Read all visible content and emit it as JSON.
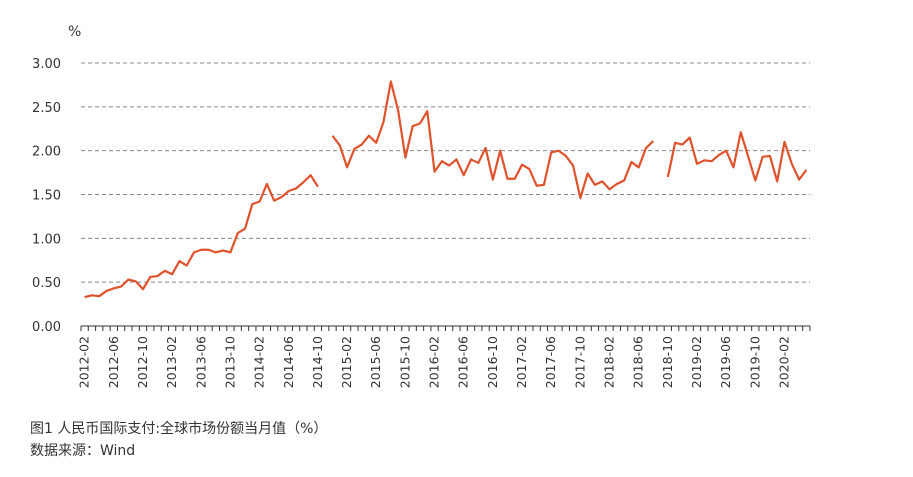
{
  "chart_data": {
    "type": "line",
    "title": "",
    "ylabel": "%",
    "xlabel": "",
    "ylim": [
      0,
      3
    ],
    "yticks": [
      "0.00",
      "0.50",
      "1.00",
      "1.50",
      "2.00",
      "2.50",
      "3.00"
    ],
    "grid": "horizontal-dashed",
    "line_color": "#E0522B",
    "axis_color": "#333333",
    "grid_color": "#888888",
    "xtick_labels": [
      "2012-02",
      "2012-06",
      "2012-10",
      "2013-02",
      "2013-06",
      "2013-10",
      "2014-02",
      "2014-06",
      "2014-10",
      "2015-02",
      "2015-06",
      "2015-10",
      "2016-02",
      "2016-06",
      "2016-10",
      "2017-02",
      "2017-06",
      "2017-10",
      "2018-02",
      "2018-06",
      "2018-10",
      "2019-02",
      "2019-06",
      "2019-10",
      "2020-02"
    ],
    "start_month": "2012-02",
    "series": [
      {
        "values": [
          0.33,
          0.35,
          0.34,
          0.4,
          0.43,
          0.45,
          0.53,
          0.51,
          0.42,
          0.56,
          0.57,
          0.63,
          0.59,
          0.74,
          0.69,
          0.84,
          0.87,
          0.87,
          0.84,
          0.86,
          0.84,
          1.06,
          1.11,
          1.39,
          1.42,
          1.62,
          1.43,
          1.47,
          1.54,
          1.57,
          1.64,
          1.72,
          1.59,
          null,
          2.17,
          2.06,
          1.81,
          2.02,
          2.07,
          2.17,
          2.09,
          2.33,
          2.79,
          2.46,
          1.92,
          2.28,
          2.31,
          2.45,
          1.76,
          1.88,
          1.83,
          1.9,
          1.72,
          1.9,
          1.86,
          2.03,
          1.67,
          2.0,
          1.68,
          1.68,
          1.84,
          1.79,
          1.6,
          1.61,
          1.98,
          2.0,
          1.94,
          1.83,
          1.46,
          1.74,
          1.61,
          1.65,
          1.56,
          1.62,
          1.66,
          1.87,
          1.81,
          2.03,
          2.11,
          null,
          1.7,
          2.09,
          2.07,
          2.15,
          1.85,
          1.89,
          1.88,
          1.95,
          2.0,
          1.81,
          2.21,
          1.94,
          1.66,
          1.93,
          1.94,
          1.65,
          2.1,
          1.85,
          1.67,
          1.78
        ]
      }
    ]
  },
  "caption": {
    "title": "图1  人民币国际支付:全球市场份额当月值（%）",
    "source": "数据来源：Wind"
  }
}
